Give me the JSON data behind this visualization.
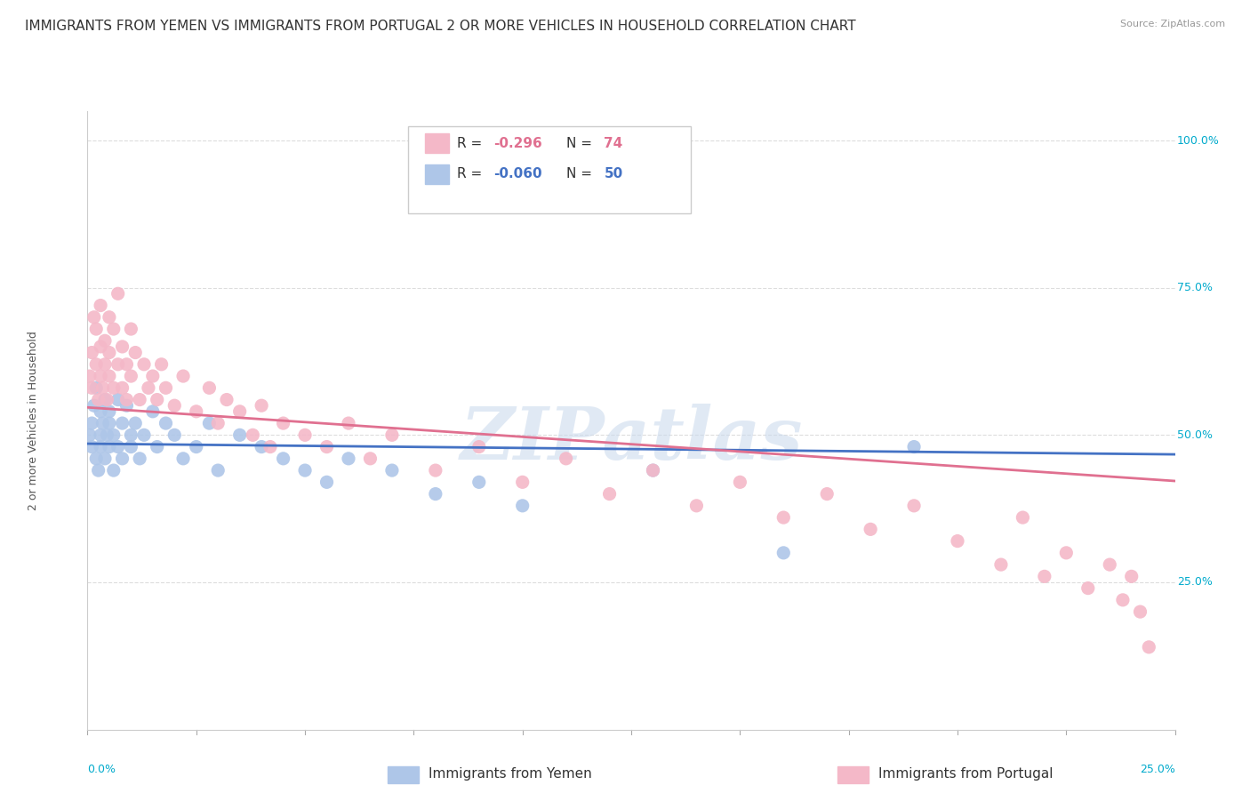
{
  "title": "IMMIGRANTS FROM YEMEN VS IMMIGRANTS FROM PORTUGAL 2 OR MORE VEHICLES IN HOUSEHOLD CORRELATION CHART",
  "source": "Source: ZipAtlas.com",
  "ylabel": "2 or more Vehicles in Household",
  "xmin": 0.0,
  "xmax": 0.25,
  "ymin": 0.0,
  "ymax": 1.05,
  "yticks": [
    0.0,
    0.25,
    0.5,
    0.75,
    1.0
  ],
  "ytick_labels": [
    "",
    "25.0%",
    "50.0%",
    "75.0%",
    "100.0%"
  ],
  "series": [
    {
      "name": "Immigrants from Yemen",
      "R": -0.06,
      "N": 50,
      "color": "#aec6e8",
      "line_color": "#4472c4",
      "text_color": "#4472c4",
      "x": [
        0.0005,
        0.001,
        0.001,
        0.0015,
        0.002,
        0.002,
        0.0025,
        0.003,
        0.003,
        0.003,
        0.0035,
        0.004,
        0.004,
        0.0045,
        0.005,
        0.005,
        0.005,
        0.006,
        0.006,
        0.007,
        0.007,
        0.008,
        0.008,
        0.009,
        0.01,
        0.01,
        0.011,
        0.012,
        0.013,
        0.015,
        0.016,
        0.018,
        0.02,
        0.022,
        0.025,
        0.028,
        0.03,
        0.035,
        0.04,
        0.045,
        0.05,
        0.055,
        0.06,
        0.07,
        0.08,
        0.09,
        0.1,
        0.13,
        0.16,
        0.19
      ],
      "y": [
        0.5,
        0.48,
        0.52,
        0.55,
        0.46,
        0.58,
        0.44,
        0.5,
        0.54,
        0.48,
        0.52,
        0.46,
        0.56,
        0.5,
        0.54,
        0.48,
        0.52,
        0.5,
        0.44,
        0.56,
        0.48,
        0.52,
        0.46,
        0.55,
        0.5,
        0.48,
        0.52,
        0.46,
        0.5,
        0.54,
        0.48,
        0.52,
        0.5,
        0.46,
        0.48,
        0.52,
        0.44,
        0.5,
        0.48,
        0.46,
        0.44,
        0.42,
        0.46,
        0.44,
        0.4,
        0.42,
        0.38,
        0.44,
        0.3,
        0.48
      ]
    },
    {
      "name": "Immigrants from Portugal",
      "R": -0.296,
      "N": 74,
      "color": "#f4b8c8",
      "line_color": "#e07090",
      "text_color": "#e07090",
      "x": [
        0.0005,
        0.001,
        0.001,
        0.0015,
        0.002,
        0.002,
        0.0025,
        0.003,
        0.003,
        0.003,
        0.0035,
        0.004,
        0.004,
        0.0045,
        0.005,
        0.005,
        0.005,
        0.006,
        0.006,
        0.007,
        0.007,
        0.008,
        0.008,
        0.009,
        0.009,
        0.01,
        0.01,
        0.011,
        0.012,
        0.013,
        0.014,
        0.015,
        0.016,
        0.017,
        0.018,
        0.02,
        0.022,
        0.025,
        0.028,
        0.03,
        0.032,
        0.035,
        0.038,
        0.04,
        0.042,
        0.045,
        0.05,
        0.055,
        0.06,
        0.065,
        0.07,
        0.08,
        0.09,
        0.1,
        0.11,
        0.12,
        0.13,
        0.14,
        0.15,
        0.16,
        0.17,
        0.18,
        0.19,
        0.2,
        0.21,
        0.215,
        0.22,
        0.225,
        0.23,
        0.235,
        0.238,
        0.24,
        0.242,
        0.244
      ],
      "y": [
        0.6,
        0.58,
        0.64,
        0.7,
        0.62,
        0.68,
        0.56,
        0.65,
        0.6,
        0.72,
        0.58,
        0.66,
        0.62,
        0.56,
        0.7,
        0.6,
        0.64,
        0.58,
        0.68,
        0.62,
        0.74,
        0.58,
        0.65,
        0.56,
        0.62,
        0.68,
        0.6,
        0.64,
        0.56,
        0.62,
        0.58,
        0.6,
        0.56,
        0.62,
        0.58,
        0.55,
        0.6,
        0.54,
        0.58,
        0.52,
        0.56,
        0.54,
        0.5,
        0.55,
        0.48,
        0.52,
        0.5,
        0.48,
        0.52,
        0.46,
        0.5,
        0.44,
        0.48,
        0.42,
        0.46,
        0.4,
        0.44,
        0.38,
        0.42,
        0.36,
        0.4,
        0.34,
        0.38,
        0.32,
        0.28,
        0.36,
        0.26,
        0.3,
        0.24,
        0.28,
        0.22,
        0.26,
        0.2,
        0.14
      ]
    }
  ],
  "watermark": "ZIPatlas",
  "background_color": "#ffffff",
  "grid_color": "#dddddd",
  "title_fontsize": 11,
  "axis_label_fontsize": 9,
  "tick_fontsize": 9,
  "legend_fontsize": 11
}
